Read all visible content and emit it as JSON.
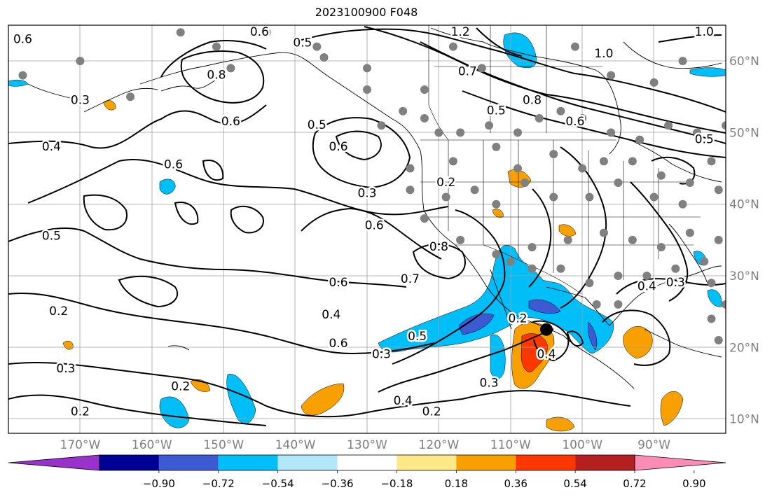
{
  "title": "2023100900 F048",
  "colors": {
    "background": "#ffffff",
    "axis_label": "#808080",
    "land_stations": "#808080",
    "contour": "#000000",
    "colorbar": [
      "#9932cc",
      "#000096",
      "#3c5ad2",
      "#00bef8",
      "#b4e6fa",
      "#ffffff",
      "#fce887",
      "#f8a000",
      "#fc3800",
      "#b42020",
      "#fc8cb4"
    ]
  },
  "axes": {
    "lon_labels": [
      "170°W",
      "160°W",
      "150°W",
      "140°W",
      "130°W",
      "120°W",
      "110°W",
      "100°W",
      "90°W"
    ],
    "lat_labels": [
      "60°N",
      "50°N",
      "40°N",
      "30°N",
      "20°N",
      "10°N"
    ],
    "lon_range": [
      -180,
      -80
    ],
    "lat_range": [
      8,
      65
    ]
  },
  "colorbar": {
    "tick_labels": [
      "−0.90",
      "−0.72",
      "−0.54",
      "−0.36",
      "−0.18",
      "0.18",
      "0.36",
      "0.54",
      "0.72",
      "0.90"
    ]
  },
  "contour_labels": [
    {
      "text": "0.6",
      "lon": -178,
      "lat": 63
    },
    {
      "text": "0.6",
      "lon": -145,
      "lat": 64
    },
    {
      "text": "0.5",
      "lon": -139,
      "lat": 62.5
    },
    {
      "text": "1.2",
      "lon": -117,
      "lat": 64
    },
    {
      "text": "1.0",
      "lon": -97,
      "lat": 61
    },
    {
      "text": "1.0",
      "lon": -83,
      "lat": 64
    },
    {
      "text": "0.3",
      "lon": -170,
      "lat": 54.5
    },
    {
      "text": "0.8",
      "lon": -151,
      "lat": 58
    },
    {
      "text": "0.6",
      "lon": -149,
      "lat": 51.5
    },
    {
      "text": "0.4",
      "lon": -174,
      "lat": 48
    },
    {
      "text": "0.5",
      "lon": -137,
      "lat": 51
    },
    {
      "text": "0.6",
      "lon": -134,
      "lat": 48
    },
    {
      "text": "0.7",
      "lon": -116,
      "lat": 58.5
    },
    {
      "text": "0.8",
      "lon": -107,
      "lat": 54.5
    },
    {
      "text": "0.5",
      "lon": -112,
      "lat": 53
    },
    {
      "text": "0.6",
      "lon": -101,
      "lat": 51.5
    },
    {
      "text": "0.5",
      "lon": -83,
      "lat": 49
    },
    {
      "text": "0.6",
      "lon": -157,
      "lat": 45.5
    },
    {
      "text": "0.3",
      "lon": -130,
      "lat": 41.5
    },
    {
      "text": "0.2",
      "lon": -119,
      "lat": 43
    },
    {
      "text": "0.6",
      "lon": -129,
      "lat": 37
    },
    {
      "text": "0.5",
      "lon": -174,
      "lat": 35.5
    },
    {
      "text": "0.8",
      "lon": -120,
      "lat": 34
    },
    {
      "text": "0.7",
      "lon": -124,
      "lat": 29.5
    },
    {
      "text": "0.6",
      "lon": -134,
      "lat": 29
    },
    {
      "text": "0.4",
      "lon": -135,
      "lat": 24.5
    },
    {
      "text": "0.6",
      "lon": -134,
      "lat": 20.5
    },
    {
      "text": "0.2",
      "lon": -109,
      "lat": 24
    },
    {
      "text": "0.5",
      "lon": -123,
      "lat": 21.5
    },
    {
      "text": "0.3",
      "lon": -128,
      "lat": 19
    },
    {
      "text": "0.4",
      "lon": -105,
      "lat": 19
    },
    {
      "text": "0.3",
      "lon": -113,
      "lat": 15
    },
    {
      "text": "0.4",
      "lon": -125,
      "lat": 12.5
    },
    {
      "text": "0.2",
      "lon": -121,
      "lat": 11
    },
    {
      "text": "0.4",
      "lon": -91,
      "lat": 28.5
    },
    {
      "text": "0.3",
      "lon": -87,
      "lat": 29
    },
    {
      "text": "0.2",
      "lon": -173,
      "lat": 25
    },
    {
      "text": "0.3",
      "lon": -172,
      "lat": 17
    },
    {
      "text": "0.2",
      "lon": -156,
      "lat": 14.5
    },
    {
      "text": "0.2",
      "lon": -170,
      "lat": 11
    }
  ],
  "stations": [
    [
      -156,
      64
    ],
    [
      -151,
      62
    ],
    [
      -144,
      64
    ],
    [
      -136,
      60.5
    ],
    [
      -130,
      59
    ],
    [
      -137,
      62
    ],
    [
      -130,
      56
    ],
    [
      -125,
      53
    ],
    [
      -128,
      51
    ],
    [
      -122,
      56
    ],
    [
      -122,
      52
    ],
    [
      -120,
      50
    ],
    [
      -117,
      50
    ],
    [
      -113,
      51
    ],
    [
      -109,
      50
    ],
    [
      -106,
      52
    ],
    [
      -103,
      53
    ],
    [
      -100,
      52
    ],
    [
      -96,
      50
    ],
    [
      -92,
      49
    ],
    [
      -88,
      51
    ],
    [
      -84,
      50
    ],
    [
      -80,
      51
    ],
    [
      -118,
      46
    ],
    [
      -112,
      48
    ],
    [
      -109,
      45
    ],
    [
      -104,
      47
    ],
    [
      -100,
      45
    ],
    [
      -97,
      46
    ],
    [
      -93,
      46
    ],
    [
      -89,
      44
    ],
    [
      -85,
      43
    ],
    [
      -82,
      46
    ],
    [
      -124,
      45
    ],
    [
      -119,
      41
    ],
    [
      -115,
      42
    ],
    [
      -112,
      40
    ],
    [
      -108,
      43
    ],
    [
      -104,
      41
    ],
    [
      -99,
      41
    ],
    [
      -95,
      43
    ],
    [
      -90,
      41
    ],
    [
      -86,
      40
    ],
    [
      -81,
      42
    ],
    [
      -124,
      42
    ],
    [
      -122,
      38
    ],
    [
      -117,
      35
    ],
    [
      -112,
      33
    ],
    [
      -107,
      34
    ],
    [
      -102,
      35
    ],
    [
      -97,
      36
    ],
    [
      -93,
      35
    ],
    [
      -89,
      34
    ],
    [
      -85,
      36
    ],
    [
      -81,
      35
    ],
    [
      -83,
      32
    ],
    [
      -87,
      31
    ],
    [
      -91,
      30
    ],
    [
      -95,
      30
    ],
    [
      -99,
      29
    ],
    [
      -103,
      31
    ],
    [
      -107,
      31
    ],
    [
      -110,
      32
    ],
    [
      -98,
      26
    ],
    [
      -95,
      26
    ],
    [
      -82,
      29
    ],
    [
      -80,
      26
    ],
    [
      -81,
      21
    ],
    [
      -82,
      24
    ],
    [
      -101,
      62
    ],
    [
      -96,
      58
    ],
    [
      -90,
      57
    ],
    [
      -86,
      60
    ],
    [
      -114,
      59
    ],
    [
      -118,
      62
    ],
    [
      -178,
      58
    ],
    [
      -163,
      55
    ],
    [
      -170,
      60
    ],
    [
      -149,
      59
    ]
  ],
  "center_marker": {
    "lon": -105,
    "lat": 22.5
  }
}
